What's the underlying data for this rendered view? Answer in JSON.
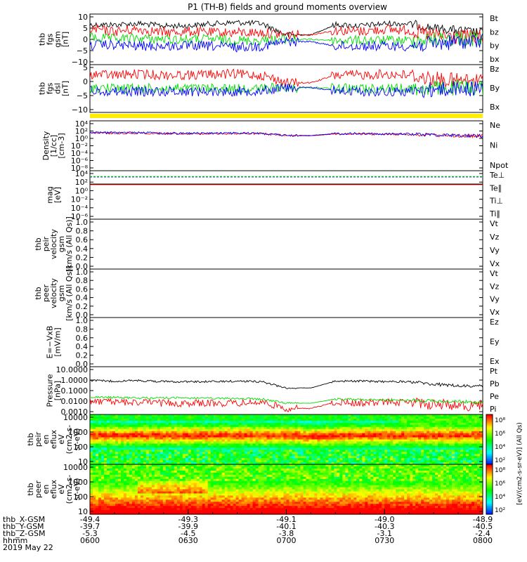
{
  "title": "P1 (TH-B) fields and ground moments overview",
  "colors": {
    "black": "#000000",
    "red": "#ff0000",
    "green": "#00dd00",
    "blue": "#0000ff",
    "yellow": "#ffee00"
  },
  "chart_data": {
    "type": "line",
    "time_range": [
      "0600",
      "0800"
    ],
    "panels": [
      {
        "id": "fgs_gsm",
        "ylabel": [
          "thb",
          "fgs",
          "gsm",
          "[nT]"
        ],
        "yticks": [
          "10",
          "5",
          "0",
          "−5",
          "−10"
        ],
        "ylim": [
          -10,
          10
        ],
        "series": [
          {
            "name": "Bt",
            "color": "#000000",
            "mean": [
              6.5,
              6.5,
              7,
              6,
              6,
              7,
              7.5,
              7,
              2,
              2,
              6.5,
              6,
              7,
              7,
              5,
              4,
              3
            ]
          },
          {
            "name": "bz",
            "color": "#ff0000",
            "mean": [
              4.5,
              3.5,
              4.5,
              3,
              3.5,
              3,
              3,
              3,
              2,
              2,
              4,
              3.5,
              4.5,
              4,
              1.5,
              1,
              1
            ]
          },
          {
            "name": "by",
            "color": "#00dd00",
            "mean": [
              1,
              0,
              0.5,
              0,
              0,
              0,
              -0.5,
              -0.5,
              0,
              0,
              -0.5,
              -0.5,
              -0.5,
              -0.5,
              0,
              0.5,
              0
            ]
          },
          {
            "name": "bx",
            "color": "#0000ff",
            "mean": [
              -2.5,
              -2.5,
              -3,
              -3,
              -3,
              -3,
              -3.5,
              -3,
              -1,
              -1,
              -3,
              -3,
              -3,
              -3,
              -2,
              -1,
              -1
            ]
          }
        ]
      },
      {
        "id": "fgs_dsl",
        "ylabel": [
          "thb",
          "fgs",
          "dsl",
          "[nT]"
        ],
        "yticks": [
          "5",
          "0",
          "−5",
          "−10"
        ],
        "ylim": [
          -12,
          10
        ],
        "series": [
          {
            "name": "Bz",
            "color": "#ff0000",
            "mean": [
              6.5,
              6,
              6.5,
              6,
              6,
              6.5,
              6.5,
              6,
              2,
              2,
              6,
              6,
              6.5,
              6,
              4,
              3,
              3
            ]
          },
          {
            "name": "By",
            "color": "#00dd00",
            "mean": [
              -0.5,
              -1,
              -1,
              -1,
              -1,
              -1,
              -1,
              -1,
              -0.5,
              -0.5,
              -1,
              -1,
              -1,
              -1,
              -1,
              -0.5,
              -0.5
            ]
          },
          {
            "name": "Bx",
            "color": "#0000ff",
            "mean": [
              -2,
              -2.5,
              -2.5,
              -2.5,
              -2.5,
              -2.5,
              -2.5,
              -2,
              -0.5,
              -0.5,
              -2,
              -2.5,
              -2.5,
              -2.5,
              -1.5,
              -1,
              -1
            ]
          }
        ]
      },
      {
        "id": "density",
        "ylabel": [
          "Density",
          "[1/cc]",
          "[cm-3]"
        ],
        "yticks": [
          "10⁴",
          "10²",
          "10⁰",
          "10⁻²",
          "10⁻⁴",
          "10⁻⁶",
          "10⁻⁸"
        ],
        "scale": "log",
        "series": [
          {
            "name": "Ne",
            "color": "#ff0000",
            "log_value": [
              1.5,
              1.4,
              1.5,
              1.3,
              1.3,
              1.3,
              1.3,
              1.3,
              0.7,
              0.7,
              1.2,
              1.2,
              1.1,
              1.1,
              0.9,
              0.7,
              0.6
            ]
          },
          {
            "name": "Ni",
            "color": "#000000",
            "log_value": null
          },
          {
            "name": "Npot",
            "color": "#0000ff",
            "log_value": [
              1.6,
              1.5,
              1.6,
              1.4,
              1.4,
              1.4,
              1.4,
              1.4,
              0.8,
              0.8,
              1.3,
              1.3,
              1.2,
              1.2,
              1.0,
              0.8,
              0.7
            ]
          }
        ]
      },
      {
        "id": "temperature",
        "ylabel": [
          "mag",
          "[eV]"
        ],
        "yticks": [
          "10⁴",
          "10²",
          "10⁰",
          "10⁻²",
          "10⁻⁴",
          "10⁻⁶"
        ],
        "scale": "log",
        "series": [
          {
            "name": "Te⊥",
            "color": "#ff0000",
            "log_value": 1.4
          },
          {
            "name": "Te∥",
            "color": "#000000",
            "log_value": 1.55
          },
          {
            "name": "Ti⊥",
            "color": "#0000ff",
            "log_value": 3.2
          },
          {
            "name": "Ti∥",
            "color": "#00dd00",
            "log_value": 3.3
          }
        ]
      },
      {
        "id": "peir_velocity",
        "ylabel": [
          "thb",
          "peir",
          "velocity",
          "gsm",
          "[km/s (All Qs)]"
        ],
        "yticks": [
          "1.0",
          "0.8",
          "0.6",
          "0.4",
          "0.2",
          "0.0"
        ],
        "ylim": [
          0,
          1
        ],
        "series": [
          {
            "name": "Vt",
            "color": "#000000"
          },
          {
            "name": "Vz",
            "color": "#ff0000"
          },
          {
            "name": "Vy",
            "color": "#00dd00"
          },
          {
            "name": "Vx",
            "color": "#0000ff"
          }
        ]
      },
      {
        "id": "peer_velocity",
        "ylabel": [
          "thb",
          "peer",
          "velocity",
          "gsm",
          "[km/s (All Qs)]"
        ],
        "yticks": [
          "1.0",
          "0.8",
          "0.6",
          "0.4",
          "0.2",
          "0.0"
        ],
        "ylim": [
          0,
          1
        ],
        "series": [
          {
            "name": "Vt",
            "color": "#000000"
          },
          {
            "name": "Vz",
            "color": "#ff0000"
          },
          {
            "name": "Vy",
            "color": "#00dd00"
          },
          {
            "name": "Vx",
            "color": "#0000ff"
          }
        ]
      },
      {
        "id": "efield",
        "ylabel": [
          "E=−VxB",
          "[mV/m]"
        ],
        "yticks": [
          "1.0",
          "0.8",
          "0.6",
          "0.4",
          "0.2",
          "0.0"
        ],
        "ylim": [
          0,
          1
        ],
        "series": [
          {
            "name": "Ez",
            "color": "#ff0000"
          },
          {
            "name": "Ey",
            "color": "#00dd00"
          },
          {
            "name": "Ex",
            "color": "#0000ff"
          }
        ]
      },
      {
        "id": "pressure",
        "ylabel": [
          "Pressure",
          "[nPa]"
        ],
        "yticks": [
          "10.0000",
          "1.0000",
          "0.1000",
          "0.0100",
          "0.0010"
        ],
        "scale": "log",
        "series": [
          {
            "name": "Pt",
            "color": "#000000",
            "log_value": [
              -0.05,
              -0.1,
              -0.05,
              -0.15,
              -0.15,
              -0.15,
              -0.1,
              -0.15,
              -0.75,
              -0.75,
              -0.1,
              -0.1,
              -0.15,
              -0.15,
              -0.4,
              -0.55,
              -0.6
            ]
          },
          {
            "name": "Pb",
            "color": "#ff0000",
            "log_value": [
              -2.0,
              -2.1,
              -2.1,
              -2.2,
              -2.2,
              -2.2,
              -2.2,
              -2.1,
              -2.7,
              -2.7,
              -2.1,
              -2.2,
              -2.1,
              -2.1,
              -2.3,
              -2.4,
              -2.4
            ]
          },
          {
            "name": "Pe",
            "color": "#00dd00",
            "log_value": [
              -1.6,
              -1.65,
              -1.7,
              -1.7,
              -1.7,
              -1.75,
              -1.75,
              -1.8,
              -2.2,
              -2.2,
              -1.8,
              -1.85,
              -1.9,
              -1.9,
              -2.0,
              -2.05,
              -2.1
            ]
          },
          {
            "name": "Pi",
            "color": "#0000ff",
            "log_value": null
          }
        ]
      },
      {
        "id": "peir_eflux",
        "type": "heatmap",
        "ylabel": [
          "thb",
          "peir",
          "en",
          "eflux",
          "eV",
          "(cm2-s-",
          "sr-eV)"
        ],
        "yticks": [
          "10000",
          "1000",
          "100",
          "10"
        ],
        "scale": "log"
      },
      {
        "id": "peer_eflux",
        "type": "heatmap",
        "ylabel": [
          "thb",
          "peer",
          "en",
          "eflux",
          "eV",
          "(cm2-s-",
          "sr-eV)"
        ],
        "yticks": [
          "10000",
          "1000",
          "100",
          "10"
        ],
        "scale": "log"
      }
    ],
    "colorbars": [
      {
        "ticks": [
          "10⁸",
          "10⁶",
          "10⁴",
          "10²"
        ]
      },
      {
        "ticks": [
          "10⁸",
          "10⁶",
          "10⁴",
          "10²"
        ]
      }
    ],
    "colorbar_label": "[eV/(cm2-s-sr-eV)] (All Qs)",
    "x_axis": {
      "row_labels": [
        "thb_X-GSM",
        "thb_Y-GSM",
        "thb_Z-GSM",
        "hhmm",
        "2019 May 22"
      ],
      "ticks": [
        {
          "x": "-49.4",
          "y": "-39.7",
          "z": "-5.3",
          "t": "0600"
        },
        {
          "x": "-49.3",
          "y": "-39.9",
          "z": "-4.5",
          "t": "0630"
        },
        {
          "x": "-49.1",
          "y": "-40.1",
          "z": "-3.8",
          "t": "0700"
        },
        {
          "x": "-49.0",
          "y": "-40.3",
          "z": "-3.1",
          "t": "0730"
        },
        {
          "x": "-48.9",
          "y": "-40.5",
          "z": "-2.4",
          "t": "0800"
        }
      ]
    }
  }
}
